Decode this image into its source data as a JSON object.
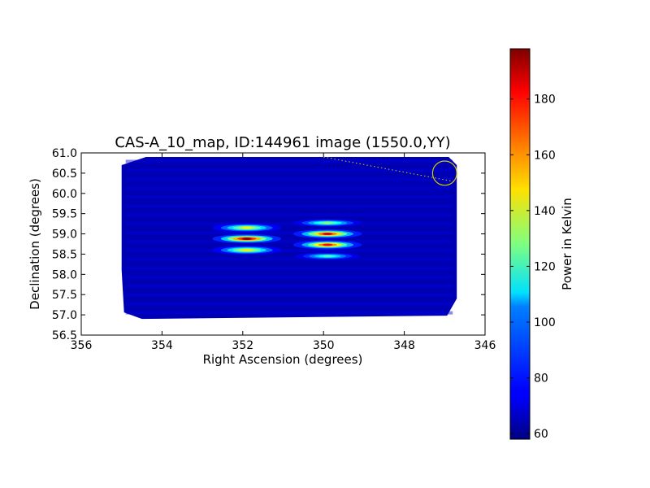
{
  "chart_data": {
    "type": "heatmap",
    "title": "CAS-A_10_map, ID:144961 image (1550.0,YY)",
    "xlabel": "Right Ascension (degrees)",
    "ylabel": "Declination (degrees)",
    "xlim": [
      356,
      346
    ],
    "ylim": [
      56.5,
      61.0
    ],
    "x_ticks": [
      356,
      354,
      352,
      350,
      348,
      346
    ],
    "x_tick_labels": [
      "356",
      "354",
      "352",
      "350",
      "348",
      "346"
    ],
    "y_ticks": [
      56.5,
      57.0,
      57.5,
      58.0,
      58.5,
      59.0,
      59.5,
      60.0,
      60.5,
      61.0
    ],
    "y_tick_labels": [
      "56.5",
      "57.0",
      "57.5",
      "58.0",
      "58.5",
      "59.0",
      "59.5",
      "60.0",
      "60.5",
      "61.0"
    ],
    "colorbar": {
      "label": "Power in Kelvin",
      "min": 58,
      "max": 198,
      "ticks": [
        60,
        80,
        100,
        120,
        140,
        160,
        180
      ],
      "tick_labels": [
        "60",
        "80",
        "100",
        "120",
        "140",
        "160",
        "180"
      ]
    },
    "background_level": 65,
    "coverage_region": {
      "ra_min": 346.7,
      "ra_max": 355.0,
      "dec_min": 56.9,
      "dec_max": 60.9
    },
    "sources": [
      {
        "ra": 351.9,
        "dec": 59.15,
        "peak": 145,
        "ra_width": 1.0,
        "dec_width": 0.07
      },
      {
        "ra": 351.9,
        "dec": 58.88,
        "peak": 195,
        "ra_width": 1.0,
        "dec_width": 0.07
      },
      {
        "ra": 351.9,
        "dec": 58.6,
        "peak": 148,
        "ra_width": 1.0,
        "dec_width": 0.07
      },
      {
        "ra": 349.9,
        "dec": 59.27,
        "peak": 130,
        "ra_width": 1.0,
        "dec_width": 0.06
      },
      {
        "ra": 349.9,
        "dec": 59.0,
        "peak": 185,
        "ra_width": 1.0,
        "dec_width": 0.07
      },
      {
        "ra": 349.9,
        "dec": 58.73,
        "peak": 180,
        "ra_width": 1.0,
        "dec_width": 0.07
      },
      {
        "ra": 349.9,
        "dec": 58.45,
        "peak": 120,
        "ra_width": 0.9,
        "dec_width": 0.06
      }
    ],
    "beam_marker": {
      "ra": 347.0,
      "dec": 60.5,
      "radius_deg": 0.3,
      "color": "#cccc00"
    },
    "dotted_line": {
      "from": [
        350.0,
        60.9
      ],
      "to": [
        346.7,
        60.28
      ],
      "color": "#cccc00"
    }
  }
}
